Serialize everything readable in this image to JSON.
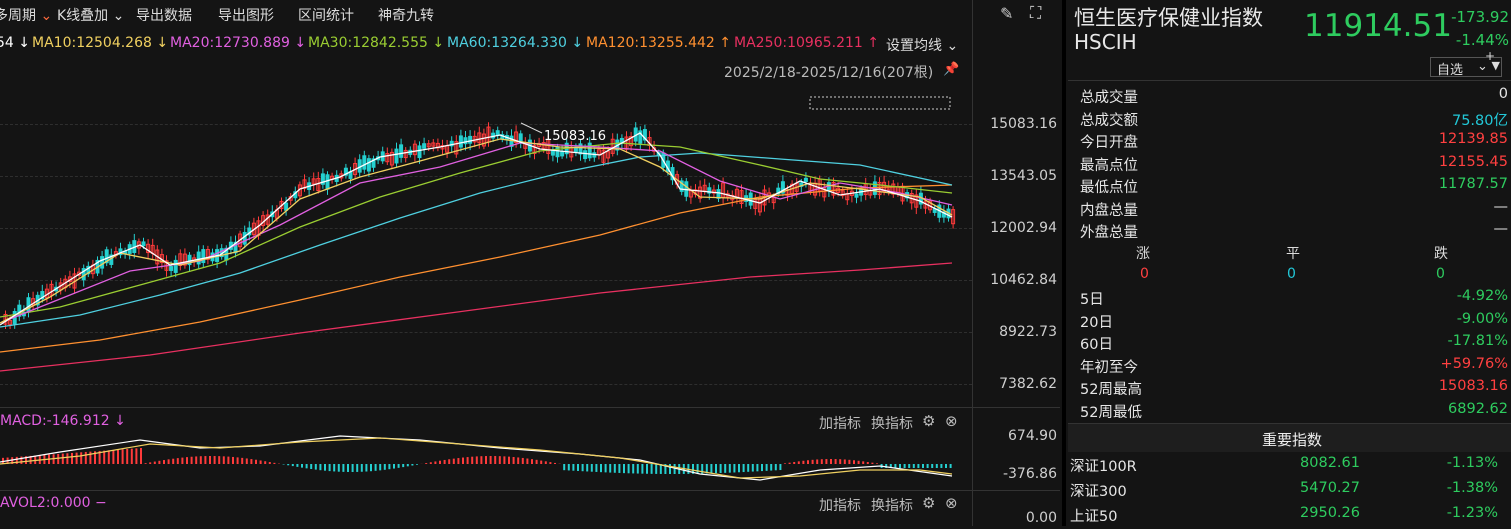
{
  "toolbar": {
    "period": "多周期",
    "overlay": "K线叠加",
    "export_data": "导出数据",
    "export_chart": "导出图形",
    "range_stats": "区间统计",
    "magic": "神奇九转"
  },
  "ma": {
    "ma5_tail": "54",
    "ma10": "MA10:12504.268",
    "ma20": "MA20:12730.889",
    "ma30": "MA30:12842.555",
    "ma60": "MA60:13264.330",
    "ma120": "MA120:13255.442",
    "ma250": "MA250:10965.211",
    "setting": "设置均线",
    "arrow_down": "↓",
    "arrow_up": "↑",
    "colors": {
      "ma10": "#f0d060",
      "ma20": "#e060e0",
      "ma30": "#9acd32",
      "ma60": "#4fd0e0",
      "ma120": "#ff9030",
      "ma250": "#e83060"
    }
  },
  "date_range": "2025/2/18-2025/12/16(207根)",
  "peak_label": "15083.16",
  "price_ticks": [
    "15083.16",
    "13543.05",
    "12002.94",
    "10462.84",
    "8922.73",
    "7382.62"
  ],
  "macd": {
    "label": "MACD:-146.912",
    "arrow": "↓",
    "ticks": [
      "674.90",
      "-376.86"
    ],
    "add": "加指标",
    "switch": "换指标"
  },
  "avol": {
    "label": "AVOL2:0.000",
    "dash": "−",
    "tick": "0.00",
    "add": "加指标",
    "switch": "换指标"
  },
  "header": {
    "name": "恒生医疗保健业指数",
    "code": "HSCIH",
    "price": "11914.51",
    "change": "-173.92",
    "change_pct": "-1.44%",
    "select_label": "自选",
    "select_plus": "+"
  },
  "stats": [
    {
      "label": "总成交量",
      "value": "0",
      "color": "#e6e6e6"
    },
    {
      "label": "总成交额",
      "value": "75.80亿",
      "color": "#22c8d8"
    },
    {
      "label": "今日开盘",
      "value": "12139.85",
      "color": "#ff4040"
    },
    {
      "label": "最高点位",
      "value": "12155.45",
      "color": "#ff4040"
    },
    {
      "label": "最低点位",
      "value": "11787.57",
      "color": "#2ecc5f"
    },
    {
      "label": "内盘总量",
      "value": "—",
      "color": "#e6e6e6"
    },
    {
      "label": "外盘总量",
      "value": "—",
      "color": "#e6e6e6"
    }
  ],
  "updown": {
    "up_label": "涨",
    "flat_label": "平",
    "down_label": "跌",
    "up": "0",
    "flat": "0",
    "down": "0"
  },
  "perf": [
    {
      "label": "5日",
      "value": "-4.92%",
      "color": "#2ecc5f"
    },
    {
      "label": "20日",
      "value": "-9.00%",
      "color": "#2ecc5f"
    },
    {
      "label": "60日",
      "value": "-17.81%",
      "color": "#2ecc5f"
    },
    {
      "label": "年初至今",
      "value": "+59.76%",
      "color": "#ff4040"
    },
    {
      "label": "52周最高",
      "value": "15083.16",
      "color": "#ff4040"
    },
    {
      "label": "52周最低",
      "value": "6892.62",
      "color": "#2ecc5f"
    }
  ],
  "important_title": "重要指数",
  "indices": [
    {
      "name": "深证100R",
      "price": "8082.61",
      "change": "-1.13%"
    },
    {
      "name": "深证300",
      "price": "5470.27",
      "change": "-1.38%"
    },
    {
      "name": "上证50",
      "price": "2950.26",
      "change": "-1.23%"
    }
  ]
}
